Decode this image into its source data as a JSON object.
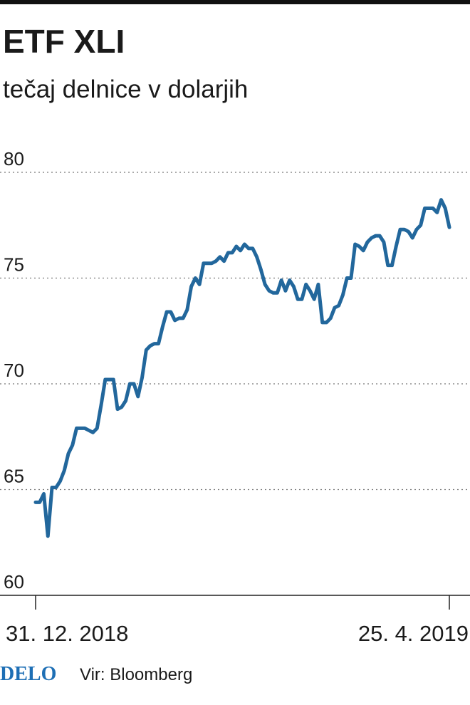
{
  "chart_data": {
    "type": "line",
    "title": "ETF XLI",
    "subtitle": "tečaj delnice v dolarjih",
    "categories": [
      "31. 12. 2018",
      null,
      null,
      null,
      null,
      null,
      null,
      null,
      null,
      null,
      null,
      null,
      null,
      null,
      null,
      null,
      null,
      null,
      null,
      null,
      null,
      null,
      null,
      null,
      null,
      null,
      null,
      null,
      null,
      null,
      null,
      null,
      null,
      null,
      null,
      null,
      null,
      null,
      null,
      null,
      null,
      null,
      null,
      null,
      null,
      null,
      null,
      null,
      null,
      null,
      null,
      null,
      null,
      null,
      null,
      null,
      null,
      null,
      null,
      null,
      null,
      null,
      null,
      null,
      null,
      null,
      null,
      null,
      null,
      null,
      null,
      null,
      null,
      null,
      null,
      null,
      null,
      null,
      null,
      null,
      null,
      null,
      null,
      null,
      null,
      null,
      null,
      null,
      null,
      null,
      null,
      null,
      null,
      null,
      null,
      null,
      null,
      null,
      null,
      null,
      null,
      "25. 4. 2019"
    ],
    "values": [
      64.4,
      64.4,
      64.8,
      62.8,
      65.1,
      65.1,
      65.4,
      65.9,
      66.7,
      67.1,
      67.9,
      67.9,
      67.9,
      67.8,
      67.7,
      67.9,
      69.0,
      70.2,
      70.2,
      70.2,
      68.8,
      68.9,
      69.2,
      70.0,
      70.0,
      69.4,
      70.3,
      71.6,
      71.8,
      71.9,
      71.9,
      72.7,
      73.4,
      73.4,
      73.0,
      73.1,
      73.1,
      73.5,
      74.6,
      75.0,
      74.7,
      75.7,
      75.7,
      75.7,
      75.8,
      76.0,
      75.8,
      76.2,
      76.2,
      76.5,
      76.3,
      76.6,
      76.4,
      76.4,
      76.0,
      75.4,
      74.7,
      74.4,
      74.3,
      74.3,
      74.9,
      74.4,
      74.9,
      74.6,
      74.0,
      74.0,
      74.7,
      74.4,
      74.0,
      74.7,
      72.9,
      72.9,
      73.1,
      73.6,
      73.7,
      74.2,
      75.0,
      75.0,
      76.6,
      76.5,
      76.3,
      76.7,
      76.9,
      77.0,
      77.0,
      76.7,
      75.6,
      75.6,
      76.5,
      77.3,
      77.3,
      77.2,
      76.9,
      77.3,
      77.5,
      78.3,
      78.3,
      78.3,
      78.1,
      78.7,
      78.3,
      77.4
    ],
    "color": "#22679c",
    "ylim": [
      60,
      80
    ],
    "yticks": [
      60,
      65,
      70,
      75,
      80
    ],
    "grid": true,
    "logo": "DELO",
    "source": "Vir: Bloomberg"
  }
}
